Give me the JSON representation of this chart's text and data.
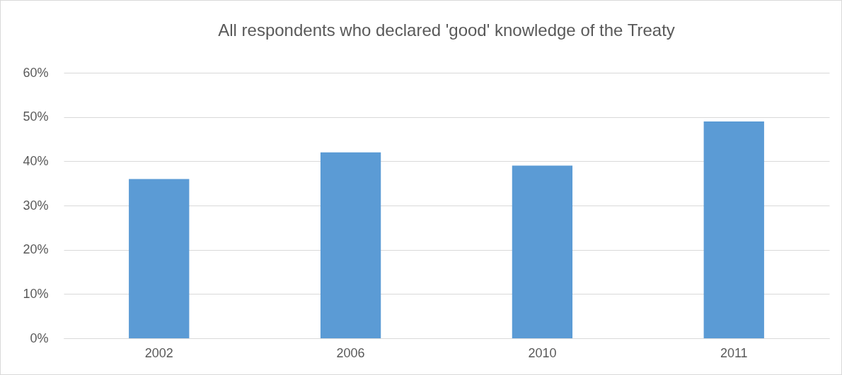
{
  "chart_data": {
    "type": "bar",
    "title": "All respondents  who declared 'good' knowledge of the Treaty",
    "categories": [
      "2002",
      "2006",
      "2010",
      "2011"
    ],
    "values": [
      36,
      42,
      39,
      49
    ],
    "color": "#5b9bd5",
    "ylim": [
      0,
      60
    ],
    "yticks": [
      {
        "value": 0,
        "label": "0%"
      },
      {
        "value": 10,
        "label": "10%"
      },
      {
        "value": 20,
        "label": "20%"
      },
      {
        "value": 30,
        "label": "30%"
      },
      {
        "value": 40,
        "label": "40%"
      },
      {
        "value": 50,
        "label": "50%"
      },
      {
        "value": 60,
        "label": "60%"
      }
    ],
    "grid": "y"
  }
}
